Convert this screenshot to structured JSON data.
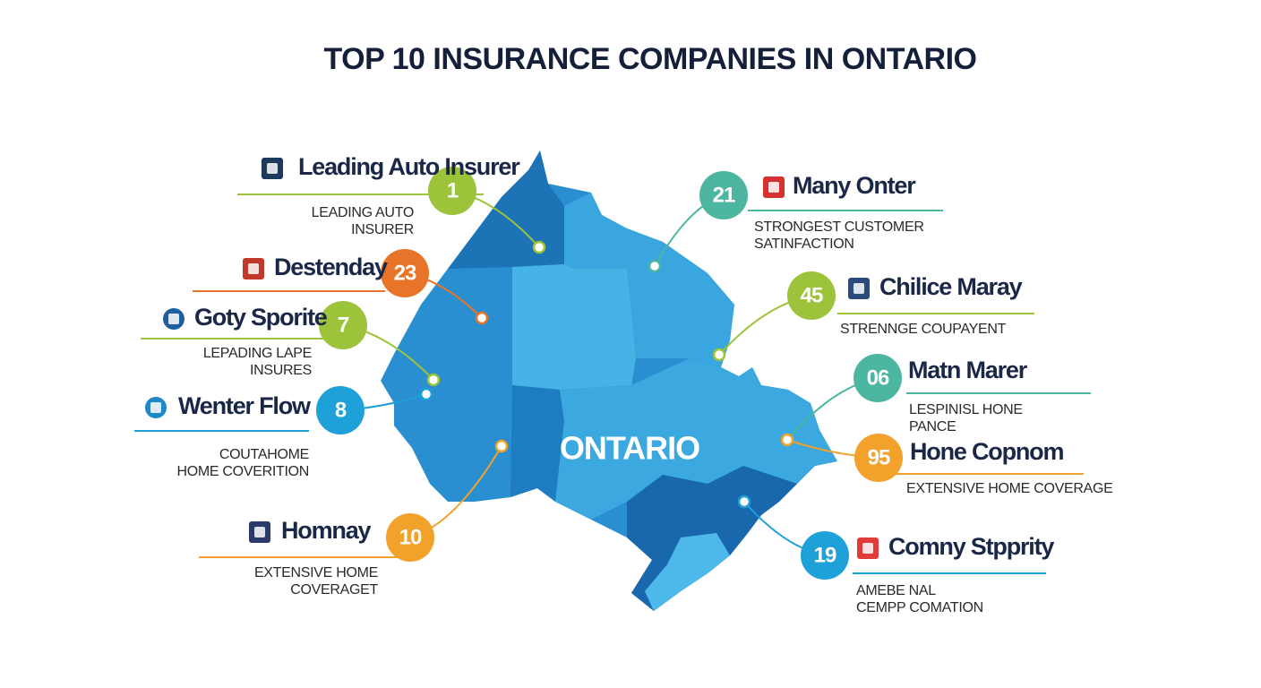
{
  "title": "TOP 10 INSURANCE COMPANIES IN ONTARIO",
  "map_label": "ONTARIO",
  "companies": [
    {
      "badge": "1",
      "name": "Leading Auto Insurer",
      "description": [
        "LEADING AUTO",
        "INSURER"
      ]
    },
    {
      "badge": "23",
      "name": "Destenday"
    },
    {
      "badge": "7",
      "name": "Goty Sporite",
      "description": [
        "LEPADING LAPE",
        "INSURES"
      ]
    },
    {
      "badge": "8",
      "name": "Wenter Flow",
      "description": [
        "COUTAHOME",
        "HOME COVERITION"
      ]
    },
    {
      "badge": "10",
      "name": "Homnay",
      "description": [
        "EXTENSIVE HOME",
        "COVERAGET"
      ]
    },
    {
      "badge": "21",
      "name": "Many Onter",
      "description": [
        "STRONGEST CUSTOMER",
        "SATINFACTION"
      ]
    },
    {
      "badge": "45",
      "name": "Chilice Maray",
      "description": [
        "STRENNGE COUPAYENT"
      ]
    },
    {
      "badge": "06",
      "name": "Matn Marer",
      "description": [
        "LESPINISL HONE",
        "PANCE"
      ]
    },
    {
      "badge": "95",
      "name": "Hone Copnom",
      "description": [
        "EXTENSIVE HOME COVERAGE"
      ]
    },
    {
      "badge": "19",
      "name": "Comny Stpprity",
      "description": [
        "AMEBE NAL",
        "CEMPP COMATION"
      ]
    }
  ]
}
